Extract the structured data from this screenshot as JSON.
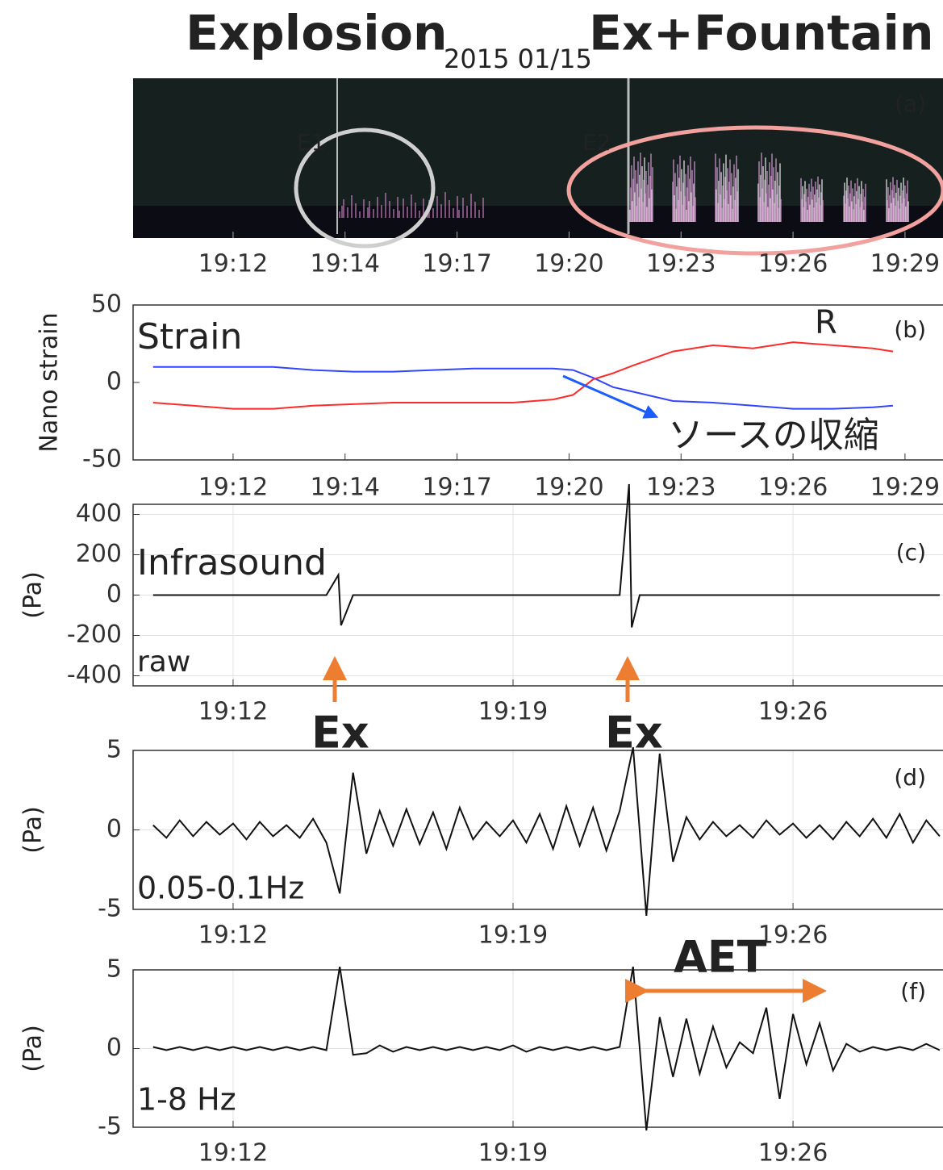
{
  "chart_data": [
    {
      "type": "image",
      "title": "2015 01/15",
      "panel_label": "(a)",
      "annotations": [
        "Explosion",
        "Ex+Fountain",
        "E1",
        "E2"
      ],
      "xlim": [
        "19:09:30",
        "19:29:45"
      ],
      "xticks": [
        {
          "value": "19:12:00",
          "label": "19:12"
        },
        {
          "value": "19:14:48",
          "label": "19:14"
        },
        {
          "value": "19:17:36",
          "label": "19:17"
        },
        {
          "value": "19:20:24",
          "label": "19:20"
        },
        {
          "value": "19:23:12",
          "label": "19:23"
        },
        {
          "value": "19:26:00",
          "label": "19:26"
        },
        {
          "value": "19:28:48",
          "label": "19:29"
        }
      ]
    },
    {
      "type": "line",
      "panel_label": "(b)",
      "ylabel": "Nano strain",
      "annotations": [
        "Strain",
        "ソースの収縮"
      ],
      "xlim": [
        "19:09:30",
        "19:29:45"
      ],
      "xticks": [
        {
          "value": "19:12:00",
          "label": "19:12"
        },
        {
          "value": "19:14:48",
          "label": "19:14"
        },
        {
          "value": "19:17:36",
          "label": "19:17"
        },
        {
          "value": "19:20:24",
          "label": "19:20"
        },
        {
          "value": "19:23:12",
          "label": "19:23"
        },
        {
          "value": "19:26:00",
          "label": "19:26"
        },
        {
          "value": "19:28:48",
          "label": "19:29"
        }
      ],
      "ylim": [
        -50,
        50
      ],
      "yticks": [
        -50,
        0,
        50
      ],
      "grid": false,
      "x": [
        "19:10",
        "19:11",
        "19:12",
        "19:13",
        "19:14",
        "19:15",
        "19:16",
        "19:17",
        "19:18",
        "19:19",
        "19:20",
        "19:20:30",
        "19:21",
        "19:21:30",
        "19:22",
        "19:23",
        "19:24",
        "19:25",
        "19:26",
        "19:27",
        "19:28",
        "19:28:30"
      ],
      "series": [
        {
          "color": "#3344ff",
          "values": [
            10,
            10,
            10,
            10,
            8,
            7,
            7,
            8,
            9,
            9,
            9,
            8,
            3,
            -3,
            -6,
            -12,
            -13,
            -15,
            -17,
            -17,
            -16,
            -15
          ]
        },
        {
          "name": "R",
          "color": "#ff2a2a",
          "values": [
            -13,
            -15,
            -17,
            -17,
            -15,
            -14,
            -13,
            -13,
            -13,
            -13,
            -11,
            -8,
            2,
            6,
            11,
            20,
            24,
            22,
            26,
            24,
            22,
            20
          ]
        }
      ]
    },
    {
      "type": "line",
      "panel_label": "(c)",
      "ylabel": "(Pa)",
      "annotations": [
        "Infrasound",
        "raw",
        "Ex",
        "Ex"
      ],
      "xlim": [
        "19:09:30",
        "19:29:45"
      ],
      "xticks": [
        "19:12",
        "19:19",
        "19:26"
      ],
      "ylim": [
        -450,
        450
      ],
      "yticks": [
        -400,
        -200,
        0,
        200,
        400
      ],
      "grid": true,
      "color": "#111111",
      "x": [
        "19:10",
        "19:14:20",
        "19:14:38",
        "19:14:42",
        "19:15:00",
        "19:21:40",
        "19:21:54",
        "19:21:58",
        "19:22:10",
        "19:29:40"
      ],
      "values": [
        0,
        0,
        100,
        -150,
        0,
        0,
        550,
        -160,
        0,
        0
      ]
    },
    {
      "type": "line",
      "panel_label": "(d)",
      "ylabel": "(Pa)",
      "annotations": [
        "0.05-0.1Hz"
      ],
      "xlim": [
        "19:09:30",
        "19:29:45"
      ],
      "xticks": [
        "19:12",
        "19:19",
        "19:26"
      ],
      "ylim": [
        -5,
        5
      ],
      "yticks": [
        -5,
        0,
        5
      ],
      "grid": true,
      "color": "#111111",
      "x": [
        "19:10:00",
        "19:10:20",
        "19:10:40",
        "19:11:00",
        "19:11:20",
        "19:11:40",
        "19:12:00",
        "19:12:20",
        "19:12:40",
        "19:13:00",
        "19:13:20",
        "19:13:40",
        "19:14:00",
        "19:14:20",
        "19:14:40",
        "19:15:00",
        "19:15:20",
        "19:15:40",
        "19:16:00",
        "19:16:20",
        "19:16:40",
        "19:17:00",
        "19:17:20",
        "19:17:40",
        "19:18:00",
        "19:18:20",
        "19:18:40",
        "19:19:00",
        "19:19:20",
        "19:19:40",
        "19:20:00",
        "19:20:20",
        "19:20:40",
        "19:21:00",
        "19:21:20",
        "19:21:40",
        "19:22:00",
        "19:22:20",
        "19:22:40",
        "19:23:00",
        "19:23:20",
        "19:23:40",
        "19:24:00",
        "19:24:20",
        "19:24:40",
        "19:25:00",
        "19:25:20",
        "19:25:40",
        "19:26:00",
        "19:26:20",
        "19:26:40",
        "19:27:00",
        "19:27:20",
        "19:27:40",
        "19:28:00",
        "19:28:20",
        "19:28:40",
        "19:29:00",
        "19:29:20",
        "19:29:40"
      ],
      "values": [
        0.3,
        -0.5,
        0.6,
        -0.4,
        0.5,
        -0.3,
        0.4,
        -0.6,
        0.5,
        -0.4,
        0.3,
        -0.5,
        0.7,
        -0.8,
        -4.0,
        3.6,
        -1.5,
        1.2,
        -1.0,
        1.3,
        -0.9,
        1.1,
        -1.2,
        1.4,
        -0.6,
        0.5,
        -0.4,
        0.6,
        -0.8,
        1.0,
        -1.2,
        1.5,
        -1.0,
        1.4,
        -1.3,
        1.2,
        5.2,
        -5.4,
        4.8,
        -2.0,
        0.8,
        -0.6,
        0.5,
        -0.4,
        0.3,
        -0.5,
        0.6,
        -0.3,
        0.4,
        -0.5,
        0.3,
        -0.6,
        0.5,
        -0.4,
        0.7,
        -0.5,
        1.0,
        -0.8,
        0.6,
        -0.4
      ]
    },
    {
      "type": "line",
      "panel_label": "(f)",
      "ylabel": "(Pa)",
      "annotations": [
        "1-8 Hz",
        "AET"
      ],
      "xlim": [
        "19:09:30",
        "19:29:45"
      ],
      "xticks": [
        "19:12",
        "19:19",
        "19:26"
      ],
      "ylim": [
        -5,
        5
      ],
      "yticks": [
        -5,
        0,
        5
      ],
      "grid": true,
      "color": "#111111",
      "x": [
        "19:10:00",
        "19:10:20",
        "19:10:40",
        "19:11:00",
        "19:11:20",
        "19:11:40",
        "19:12:00",
        "19:12:20",
        "19:12:40",
        "19:13:00",
        "19:13:20",
        "19:13:40",
        "19:14:00",
        "19:14:20",
        "19:14:40",
        "19:15:00",
        "19:15:20",
        "19:15:40",
        "19:16:00",
        "19:16:20",
        "19:16:40",
        "19:17:00",
        "19:17:20",
        "19:17:40",
        "19:18:00",
        "19:18:20",
        "19:18:40",
        "19:19:00",
        "19:19:20",
        "19:19:40",
        "19:20:00",
        "19:20:20",
        "19:20:40",
        "19:21:00",
        "19:21:20",
        "19:21:40",
        "19:22:00",
        "19:22:20",
        "19:22:40",
        "19:23:00",
        "19:23:20",
        "19:23:40",
        "19:24:00",
        "19:24:20",
        "19:24:40",
        "19:25:00",
        "19:25:20",
        "19:25:40",
        "19:26:00",
        "19:26:20",
        "19:26:40",
        "19:27:00",
        "19:27:20",
        "19:27:40",
        "19:28:00",
        "19:28:20",
        "19:28:40",
        "19:29:00",
        "19:29:20",
        "19:29:40"
      ],
      "values": [
        0.1,
        -0.1,
        0.1,
        -0.1,
        0.1,
        -0.1,
        0.1,
        -0.1,
        0.1,
        -0.1,
        0.1,
        -0.1,
        0.1,
        -0.1,
        5.2,
        -0.4,
        -0.3,
        0.2,
        -0.2,
        0.1,
        -0.1,
        0.1,
        -0.1,
        0.1,
        -0.1,
        0.1,
        -0.1,
        0.2,
        -0.2,
        0.1,
        -0.1,
        0.1,
        -0.1,
        0.1,
        -0.1,
        0.1,
        5.2,
        -5.2,
        2.0,
        -1.8,
        1.9,
        -1.6,
        1.4,
        -1.2,
        0.4,
        -0.3,
        2.6,
        -3.2,
        2.2,
        -1.0,
        1.6,
        -1.4,
        0.3,
        -0.2,
        0.1,
        -0.1,
        0.1,
        -0.1,
        0.3,
        -0.1
      ]
    }
  ]
}
